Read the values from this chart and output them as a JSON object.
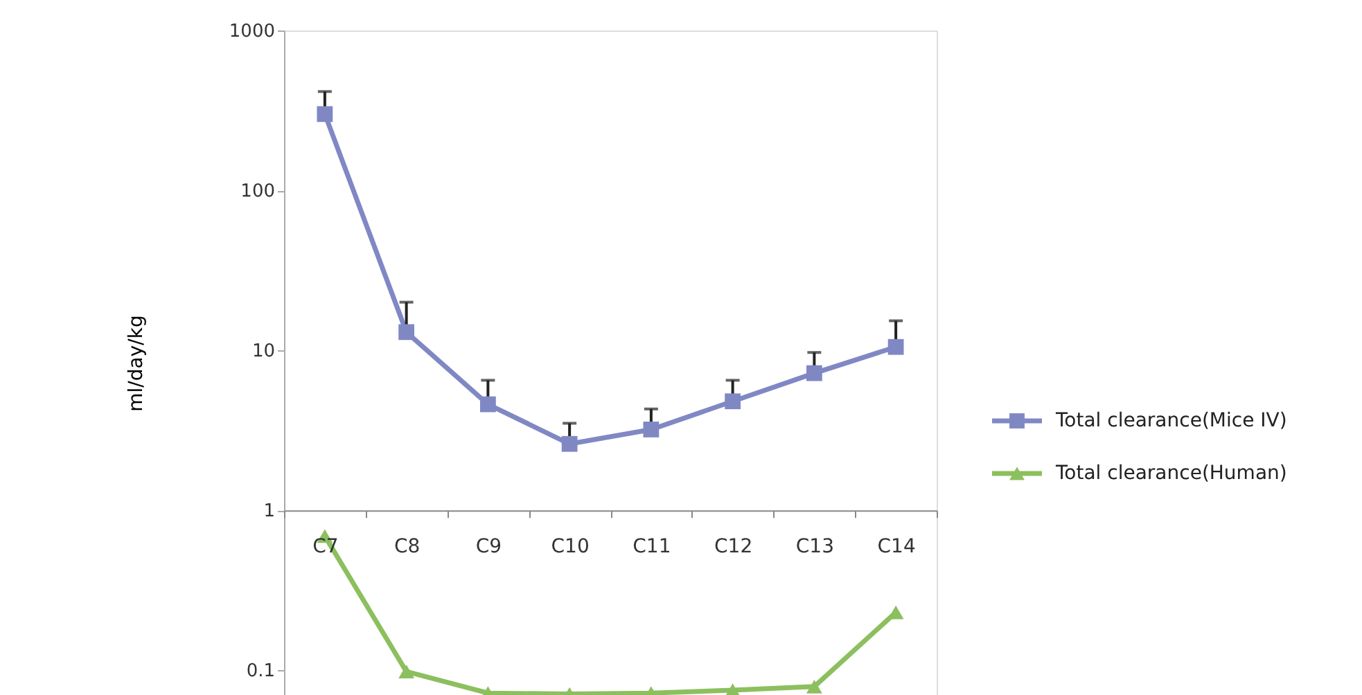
{
  "chart_data": {
    "type": "line",
    "ylabel": "ml/day/kg",
    "categories": [
      "C7",
      "C8",
      "C9",
      "C10",
      "C11",
      "C12",
      "C13",
      "C14"
    ],
    "series": [
      {
        "name": "Total clearance(Mice IV)",
        "color": "#8088c4",
        "marker": "square",
        "values": [
          300,
          13,
          4.6,
          2.6,
          3.2,
          4.8,
          7.2,
          10.5
        ],
        "errors": [
          [
            300,
            415
          ],
          [
            13,
            20
          ],
          [
            4.6,
            6.5
          ],
          [
            2.6,
            3.5
          ],
          [
            3.2,
            4.3
          ],
          [
            4.8,
            6.5
          ],
          [
            7.2,
            9.7
          ],
          [
            10.5,
            15.3
          ]
        ]
      },
      {
        "name": "Total clearance(Human)",
        "color": "#8cbf5e",
        "marker": "triangle",
        "values": [
          0.69,
          0.098,
          0.072,
          0.071,
          0.072,
          0.075,
          0.079,
          0.23
        ]
      }
    ],
    "log": true,
    "ylim": [
      0.07,
      1000
    ],
    "yticks": [
      0.1,
      1,
      10,
      100,
      1000
    ],
    "grid": false,
    "legend": "right",
    "line_style": "solid"
  }
}
